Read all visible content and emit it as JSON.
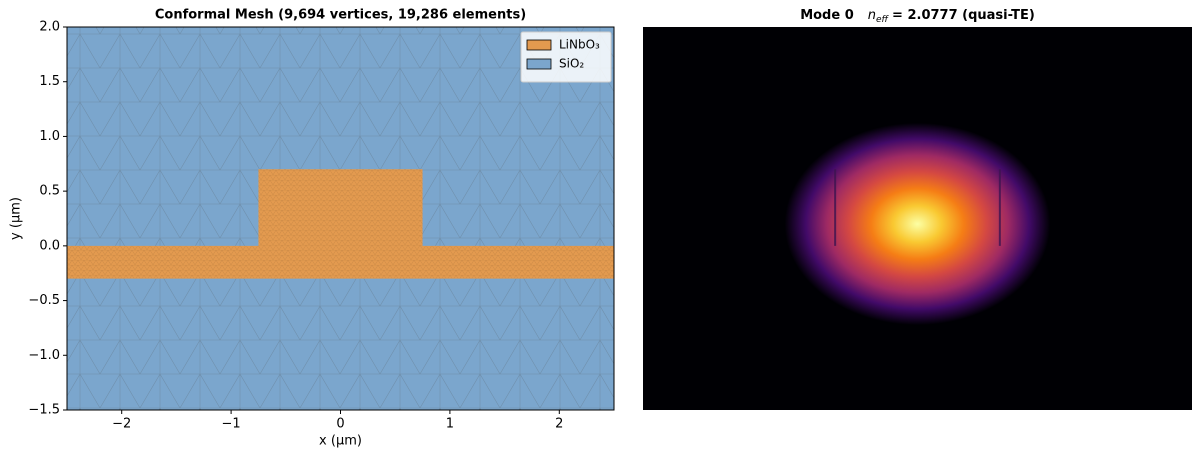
{
  "chart_data": [
    {
      "type": "mesh",
      "title": "Conformal Mesh  (9,694 vertices, 19,286 elements)",
      "x_label": "x (µm)",
      "y_label": "y (µm)",
      "xlim": [
        -2.5,
        2.5
      ],
      "ylim": [
        -1.5,
        2.0
      ],
      "xticks": [
        {
          "value": -2,
          "label": "−2"
        },
        {
          "value": -1,
          "label": "−1"
        },
        0,
        1,
        2
      ],
      "yticks": [
        {
          "value": -1.5,
          "label": "−1.5"
        },
        {
          "value": -1.0,
          "label": "−1.0"
        },
        {
          "value": -0.5,
          "label": "−0.5"
        },
        {
          "value": 0,
          "label": "0.0"
        },
        0.5,
        {
          "value": 1.0,
          "label": "1.0"
        },
        1.5,
        {
          "value": 2.0,
          "label": "2.0"
        }
      ],
      "regions": [
        {
          "name": "SiO₂",
          "color": "#7ba6cd",
          "x": [
            -2.5,
            2.5,
            2.5,
            -2.5
          ],
          "y": [
            -1.5,
            -1.5,
            2.0,
            2.0
          ]
        },
        {
          "name": "LiNbO₃",
          "color": "#e39a4f",
          "x": [
            -2.5,
            -0.75,
            -0.75,
            0.75,
            0.75,
            2.5,
            2.5,
            -2.5
          ],
          "y": [
            0,
            0,
            0.7,
            0.7,
            0,
            0,
            -0.3,
            -0.3
          ]
        }
      ],
      "legend": "upper right"
    },
    {
      "type": "heatmap",
      "title": [
        "Mode 0",
        "n",
        "eff",
        "= 2.0777  (quasi-TE)"
      ],
      "xlim": [
        -2.5,
        2.5
      ],
      "ylim": [
        -1.5,
        2.0
      ],
      "colormap": "inferno",
      "mode": {
        "x": 0,
        "y": 0.2,
        "sx": 0.55,
        "sy": 0.42
      },
      "edges": [
        -0.75,
        0.75
      ]
    }
  ]
}
